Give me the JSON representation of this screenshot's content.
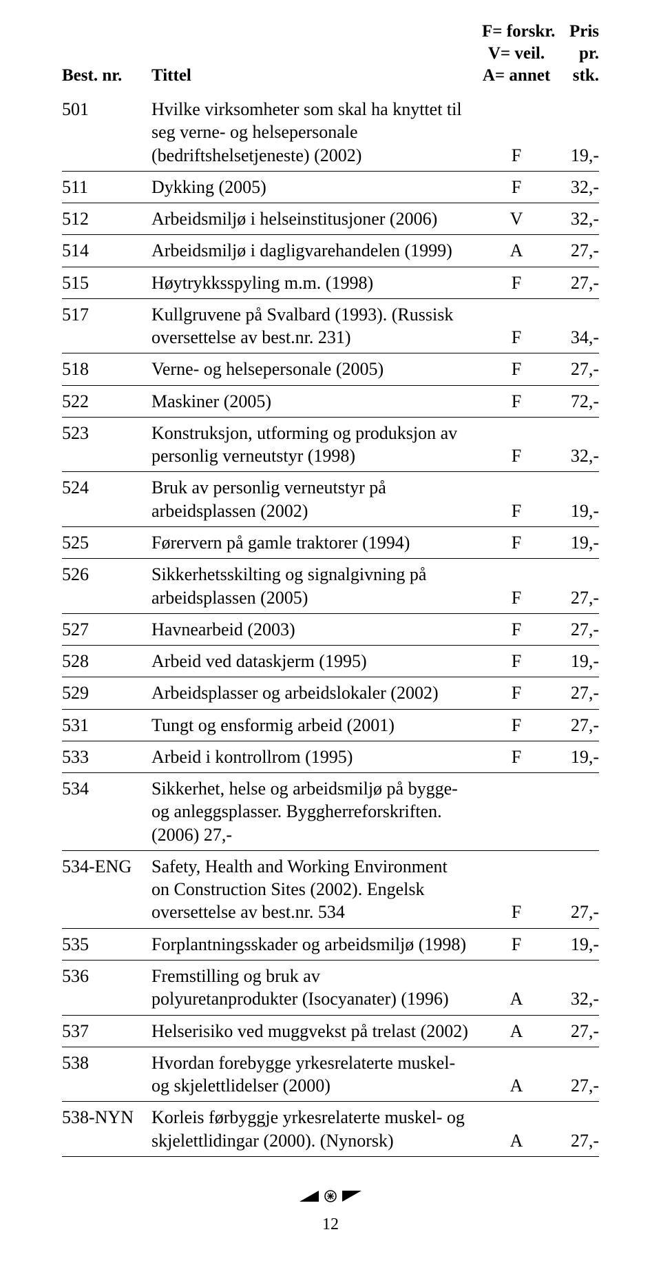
{
  "header": {
    "col1": "Best. nr.",
    "col2": "Tittel",
    "col3": "F= forskr.\nV= veil.\nA= annet",
    "col4": "Pris\npr.\nstk."
  },
  "rows": [
    {
      "nr": "501",
      "title": "Hvilke virksomheter som skal ha knyttet til seg verne- og helsepersonale (bedriftshelsetjeneste) (2002)",
      "type": "F",
      "price": "19,-"
    },
    {
      "nr": "511",
      "title": "Dykking (2005)",
      "type": "F",
      "price": "32,-"
    },
    {
      "nr": "512",
      "title": "Arbeidsmiljø i helseinstitusjoner (2006)",
      "type": "V",
      "price": "32,-"
    },
    {
      "nr": "514",
      "title": "Arbeidsmiljø i dagligvarehandelen (1999)",
      "type": "A",
      "price": "27,-"
    },
    {
      "nr": "515",
      "title": "Høytrykksspyling m.m. (1998)",
      "type": "F",
      "price": "27,-"
    },
    {
      "nr": "517",
      "title": "Kullgruvene på Svalbard (1993). (Russisk oversettelse av best.nr. 231)",
      "type": "F",
      "price": "34,-"
    },
    {
      "nr": "518",
      "title": "Verne- og helsepersonale (2005)",
      "type": "F",
      "price": "27,-"
    },
    {
      "nr": "522",
      "title": "Maskiner (2005)",
      "type": "F",
      "price": "72,-"
    },
    {
      "nr": "523",
      "title": "Konstruksjon, utforming og produksjon av personlig verneutstyr (1998)",
      "type": "F",
      "price": "32,-"
    },
    {
      "nr": "524",
      "title": "Bruk av personlig verneutstyr på arbeidsplassen (2002)",
      "type": "F",
      "price": "19,-"
    },
    {
      "nr": "525",
      "title": "Førervern på gamle traktorer (1994)",
      "type": "F",
      "price": "19,-"
    },
    {
      "nr": "526",
      "title": "Sikkerhetsskilting og signalgivning på arbeids­plassen (2005)",
      "type": "F",
      "price": "27,-"
    },
    {
      "nr": "527",
      "title": "Havnearbeid (2003)",
      "type": "F",
      "price": "27,-"
    },
    {
      "nr": "528",
      "title": "Arbeid ved dataskjerm (1995)",
      "type": "F",
      "price": "19,-"
    },
    {
      "nr": "529",
      "title": "Arbeidsplasser og arbeidslokaler (2002)",
      "type": "F",
      "price": "27,-"
    },
    {
      "nr": "531",
      "title": "Tungt og ensformig arbeid (2001)",
      "type": "F",
      "price": "27,-"
    },
    {
      "nr": "533",
      "title": "Arbeid i kontrollrom (1995)",
      "type": "F",
      "price": "19,-"
    },
    {
      "nr": "534",
      "title": "Sikkerhet, helse og arbeidsmiljø på bygge- og anleggsplasser. Byggherreforskriften. (2006) 27,-",
      "type": "",
      "price": ""
    },
    {
      "nr": "534-ENG",
      "title": "Safety, Health and Working Environment on Construc­tion Sites (2002). Engelsk oversettelse av best.nr. 534",
      "type": "F",
      "price": "27,-"
    },
    {
      "nr": "535",
      "title": "Forplantningsskader og arbeidsmiljø (1998)",
      "type": "F",
      "price": "19,-"
    },
    {
      "nr": "536",
      "title": "Fremstilling og bruk av polyuretanprodukter (Isocyanater) (1996)",
      "type": "A",
      "price": "32,-"
    },
    {
      "nr": "537",
      "title": "Helserisiko ved muggvekst på trelast (2002)",
      "type": "A",
      "price": "27,-"
    },
    {
      "nr": "538",
      "title": "Hvordan forebygge yrkesrelaterte muskel- og skjelett­lidelser (2000)",
      "type": "A",
      "price": "27,-"
    },
    {
      "nr": "538-NYN",
      "title": "Korleis førbyggje yrkesrelaterte muskel- og skjelett­lidingar (2000). (Nynorsk)",
      "type": "A",
      "price": "27,-"
    }
  ],
  "page_number": "12",
  "colors": {
    "text": "#000000",
    "rule": "#000000",
    "background": "#ffffff"
  }
}
